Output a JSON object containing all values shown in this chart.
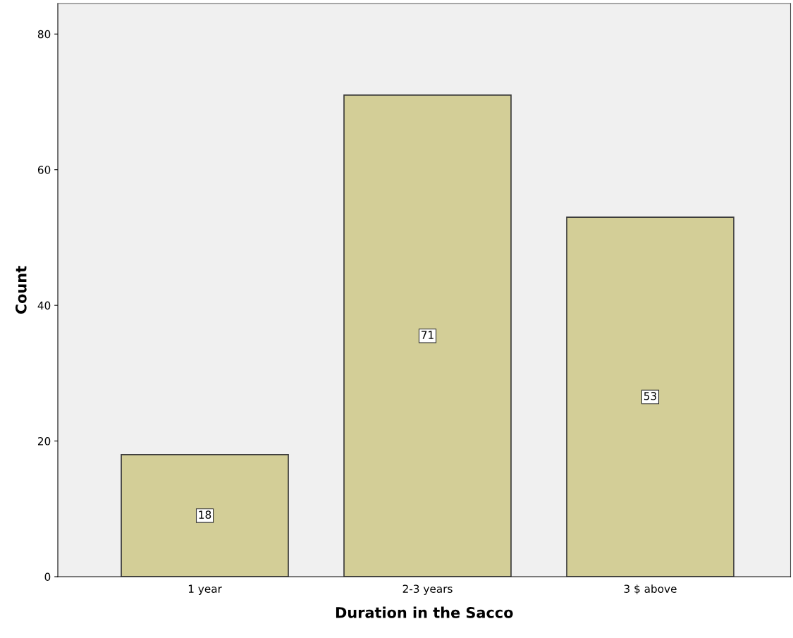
{
  "chart_data": {
    "type": "bar",
    "xlabel": "Duration in the Sacco",
    "ylabel": "Count",
    "categories": [
      "1 year",
      "2-3 years",
      "3 $ above"
    ],
    "values": [
      18,
      71,
      53
    ],
    "color": "#d3ce97",
    "ylim": [
      0,
      84.5
    ],
    "yticks": [
      0,
      20,
      40,
      60,
      80
    ],
    "data_labels": true,
    "grid": false,
    "legend": false
  }
}
